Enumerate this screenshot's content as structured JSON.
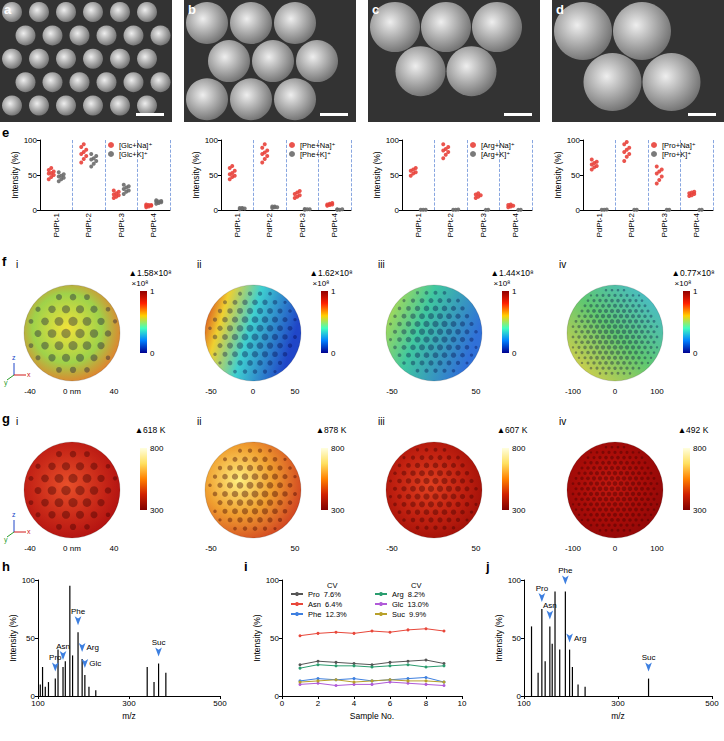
{
  "chart_data": [
    {
      "type": "image",
      "panel": "a"
    },
    {
      "type": "image",
      "panel": "b"
    },
    {
      "type": "image",
      "panel": "c"
    },
    {
      "type": "image",
      "panel": "d"
    },
    {
      "type": "scatter",
      "panel": "e",
      "categories": [
        "PdPt-1",
        "PdPt-2",
        "PdPt-3",
        "PdPt-4"
      ],
      "ylabel": "Intensity (%)",
      "ylim": [
        0,
        100
      ],
      "yticks": [
        0,
        50,
        100
      ],
      "grid": true,
      "legend": "upper right",
      "marker": "circle",
      "series": [
        {
          "name": "[Glc+Na]⁺",
          "color": "#e8413a",
          "values": [
            [
              44,
              47,
              50,
              52,
              53,
              55,
              57,
              60
            ],
            [
              68,
              73,
              77,
              80,
              83,
              86,
              90,
              94
            ],
            [
              17,
              19,
              21,
              22,
              24,
              26,
              28
            ],
            [
              4,
              5,
              6,
              6,
              7,
              7,
              8
            ]
          ]
        },
        {
          "name": "[Glc+K]⁺",
          "color": "#6b6b6b",
          "values": [
            [
              41,
              44,
              46,
              48,
              49,
              51,
              54
            ],
            [
              62,
              66,
              70,
              72,
              74,
              77,
              80
            ],
            [
              23,
              26,
              28,
              30,
              32,
              34,
              36
            ],
            [
              9,
              10,
              11,
              12,
              12,
              13,
              14
            ]
          ]
        }
      ]
    },
    {
      "type": "scatter",
      "categories": [
        "PdPt-1",
        "PdPt-2",
        "PdPt-3",
        "PdPt-4"
      ],
      "ylabel": "Intensity (%)",
      "ylim": [
        0,
        100
      ],
      "yticks": [
        0,
        50,
        100
      ],
      "grid": true,
      "legend": "upper right",
      "marker": "circle",
      "series": [
        {
          "name": "[Phe+Na]⁺",
          "color": "#e8413a",
          "values": [
            [
              44,
              47,
              49,
              51,
              53,
              56,
              60,
              63
            ],
            [
              68,
              73,
              77,
              80,
              82,
              85,
              89,
              94
            ],
            [
              17,
              19,
              21,
              23,
              25,
              27
            ],
            [
              6,
              7,
              8,
              8,
              9,
              10
            ]
          ]
        },
        {
          "name": "[Phe+K]⁺",
          "color": "#6b6b6b",
          "values": [
            [
              1,
              2,
              2,
              3,
              3
            ],
            [
              3,
              4,
              4,
              5,
              5
            ],
            [
              0.5,
              1,
              1,
              1.5
            ],
            [
              0.5,
              0.5,
              1,
              1
            ]
          ]
        }
      ]
    },
    {
      "type": "scatter",
      "categories": [
        "PdPt-1",
        "PdPt-2",
        "PdPt-3",
        "PdPt-4"
      ],
      "ylabel": "Intensity (%)",
      "ylim": [
        0,
        100
      ],
      "yticks": [
        0,
        50,
        100
      ],
      "grid": true,
      "legend": "upper right",
      "marker": "circle",
      "series": [
        {
          "name": "[Arg+Na]⁺",
          "color": "#e8413a",
          "values": [
            [
              49,
              52,
              54,
              56,
              58,
              60
            ],
            [
              74,
              79,
              83,
              85,
              87,
              90,
              94
            ],
            [
              17,
              19,
              21,
              22,
              24
            ],
            [
              4,
              5,
              6,
              7,
              8
            ]
          ]
        },
        {
          "name": "[Arg+K]⁺",
          "color": "#6b6b6b",
          "values": [
            [
              0.3,
              0.4,
              0.5
            ],
            [
              0.3,
              0.5,
              0.6
            ],
            [
              0.2,
              0.3
            ],
            [
              0.2,
              0.3
            ]
          ]
        }
      ]
    },
    {
      "type": "scatter",
      "categories": [
        "PdPt-1",
        "PdPt-2",
        "PdPt-3",
        "PdPt-4"
      ],
      "ylabel": "Intensity (%)",
      "ylim": [
        0,
        100
      ],
      "yticks": [
        0,
        50,
        100
      ],
      "grid": true,
      "legend": "upper right",
      "marker": "circle",
      "series": [
        {
          "name": "[Pro+Na]⁺",
          "color": "#e8413a",
          "values": [
            [
              58,
              61,
              63,
              65,
              67,
              69,
              72
            ],
            [
              70,
              76,
              80,
              83,
              86,
              89,
              94,
              97
            ],
            [
              38,
              43,
              48,
              52,
              55,
              58,
              62
            ],
            [
              20,
              21,
              23,
              24,
              25,
              26
            ]
          ]
        },
        {
          "name": "[Pro+K]⁺",
          "color": "#6b6b6b",
          "values": [
            [
              0.4,
              0.5,
              0.6
            ],
            [
              0.3,
              0.4
            ],
            [
              0.3,
              0.5
            ],
            [
              0.2,
              0.3
            ]
          ]
        }
      ]
    },
    {
      "type": "surface",
      "panel": "f",
      "label": "i",
      "max_label": "▲1.58×10⁸",
      "colorbar": {
        "range": [
          0,
          1
        ],
        "ticks": [
          0,
          1
        ],
        "unit": "×10⁸"
      },
      "axis_labels": [
        "-40",
        "0 nm",
        "40"
      ],
      "triad": [
        "y",
        "z",
        "x"
      ]
    },
    {
      "type": "surface",
      "label": "ii",
      "max_label": "▲1.62×10⁸",
      "colorbar": {
        "range": [
          0,
          1
        ],
        "ticks": [
          0,
          1
        ],
        "unit": "×10⁸"
      },
      "axis_labels": [
        "-50",
        "0",
        "50"
      ]
    },
    {
      "type": "surface",
      "label": "iii",
      "max_label": "▲1.44×10⁸",
      "colorbar": {
        "range": [
          0,
          1
        ],
        "ticks": [
          0,
          1
        ],
        "unit": "×10⁸"
      },
      "axis_labels": [
        "-50",
        "50"
      ]
    },
    {
      "type": "surface",
      "label": "iv",
      "max_label": "▲0.77×10⁸",
      "colorbar": {
        "range": [
          0,
          1
        ],
        "ticks": [
          0,
          1
        ],
        "unit": "×10⁸"
      },
      "axis_labels": [
        "-100",
        "0",
        "100"
      ]
    },
    {
      "type": "surface",
      "panel": "g",
      "label": "i",
      "max_label": "▲618 K",
      "colorbar": {
        "range": [
          300,
          800
        ],
        "ticks": [
          300,
          800
        ]
      },
      "axis_labels": [
        "-40",
        "0 nm",
        "40"
      ],
      "triad": [
        "y",
        "z",
        "x"
      ]
    },
    {
      "type": "surface",
      "label": "ii",
      "max_label": "▲878 K",
      "colorbar": {
        "range": [
          300,
          800
        ],
        "ticks": [
          300,
          800
        ]
      },
      "axis_labels": [
        "-50",
        "50"
      ]
    },
    {
      "type": "surface",
      "label": "iii",
      "max_label": "▲607 K",
      "colorbar": {
        "range": [
          300,
          800
        ],
        "ticks": [
          300,
          800
        ]
      },
      "axis_labels": [
        "-50",
        "50"
      ]
    },
    {
      "type": "surface",
      "label": "iv",
      "max_label": "▲492 K",
      "colorbar": {
        "range": [
          300,
          800
        ],
        "ticks": [
          300,
          800
        ]
      },
      "axis_labels": [
        "-100",
        "0",
        "100"
      ]
    },
    {
      "type": "bar",
      "panel": "h",
      "xlabel": "m/z",
      "ylabel": "Intensity (%)",
      "xlim": [
        100,
        500
      ],
      "xticks": [
        100,
        300,
        500
      ],
      "ylim": [
        0,
        100
      ],
      "yticks": [
        0,
        50,
        100
      ],
      "color": "#000000",
      "x": [
        105,
        110,
        116,
        123,
        138,
        144,
        155,
        160,
        170,
        176,
        188,
        197,
        203,
        212,
        227,
        340,
        355,
        365,
        381
      ],
      "values": [
        10,
        25,
        8,
        12,
        15,
        40,
        25,
        30,
        95,
        35,
        55,
        32,
        18,
        8,
        5,
        25,
        12,
        28,
        20
      ],
      "annotations": [
        {
          "x": 138,
          "text": "Pro"
        },
        {
          "x": 155,
          "text": "Asn"
        },
        {
          "x": 188,
          "text": "Phe"
        },
        {
          "x": 197,
          "text": "Arg"
        },
        {
          "x": 203,
          "text": "Glc"
        },
        {
          "x": 365,
          "text": "Suc"
        }
      ]
    },
    {
      "type": "line",
      "panel": "i",
      "xlabel": "Sample No.",
      "ylabel": "Intensity (%)",
      "xlim": [
        0,
        10
      ],
      "xticks": [
        0,
        2,
        4,
        6,
        8,
        10
      ],
      "ylim": [
        0,
        100
      ],
      "yticks": [
        0,
        50,
        100
      ],
      "cv_title": "CV",
      "marker": "circle",
      "x": [
        1,
        2,
        3,
        4,
        5,
        6,
        7,
        8,
        9
      ],
      "series": [
        {
          "name": "Pro",
          "color": "#555555",
          "cv": "7.6%",
          "values": [
            27,
            30,
            29,
            28,
            27,
            29,
            30,
            31,
            28
          ]
        },
        {
          "name": "Asn",
          "color": "#e8473a",
          "cv": "6.4%",
          "values": [
            52,
            54,
            55,
            54,
            56,
            55,
            57,
            58,
            56
          ]
        },
        {
          "name": "Phe",
          "color": "#3d7fe0",
          "cv": "12.3%",
          "values": [
            13,
            15,
            14,
            15,
            13,
            14,
            15,
            16,
            12
          ]
        },
        {
          "name": "Arg",
          "color": "#2a9d6f",
          "cv": "8.2%",
          "values": [
            24,
            27,
            26,
            26,
            25,
            26,
            27,
            25,
            26
          ]
        },
        {
          "name": "Glc",
          "color": "#b05ad8",
          "cv": "13.0%",
          "values": [
            10,
            11,
            9,
            10,
            10,
            12,
            11,
            10,
            9
          ]
        },
        {
          "name": "Suc",
          "color": "#b8a02a",
          "cv": "9.9%",
          "values": [
            12,
            13,
            14,
            12,
            13,
            14,
            13,
            13,
            12
          ]
        }
      ]
    },
    {
      "type": "bar",
      "panel": "j",
      "xlabel": "m/z",
      "ylabel": "Intensity (%)",
      "xlim": [
        100,
        500
      ],
      "xticks": [
        100,
        300,
        500
      ],
      "ylim": [
        0,
        100
      ],
      "yticks": [
        0,
        50,
        100
      ],
      "color": "#000000",
      "x": [
        116,
        130,
        138,
        145,
        155,
        160,
        166,
        176,
        188,
        197,
        203,
        215,
        230,
        365
      ],
      "values": [
        60,
        20,
        75,
        30,
        60,
        45,
        90,
        40,
        90,
        40,
        25,
        10,
        8,
        15
      ],
      "annotations": [
        {
          "x": 138,
          "text": "Pro"
        },
        {
          "x": 155,
          "text": "Asn"
        },
        {
          "x": 188,
          "text": "Phe"
        },
        {
          "x": 197,
          "text": "Arg"
        },
        {
          "x": 365,
          "text": "Suc"
        }
      ]
    }
  ]
}
